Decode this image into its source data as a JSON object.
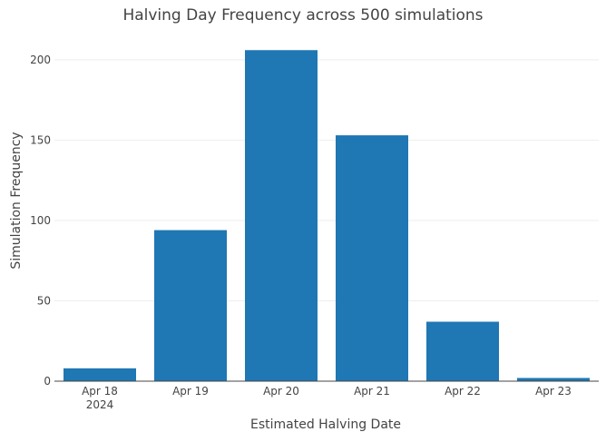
{
  "chart_data": {
    "type": "bar",
    "title": "Halving Day Frequency across 500 simulations",
    "xlabel": "Estimated Halving Date",
    "ylabel": "Simulation Frequency",
    "categories": [
      "Apr 18",
      "Apr 19",
      "Apr 20",
      "Apr 21",
      "Apr 22",
      "Apr 23"
    ],
    "category_sublabels": [
      "2024",
      "",
      "",
      "",
      "",
      ""
    ],
    "values": [
      8,
      94,
      206,
      153,
      37,
      2
    ],
    "ylim": [
      0,
      218
    ],
    "yticks": [
      "0",
      "50",
      "100",
      "150",
      "200"
    ],
    "grid": true,
    "legend": "none",
    "bar_color": "#1f77b4"
  }
}
